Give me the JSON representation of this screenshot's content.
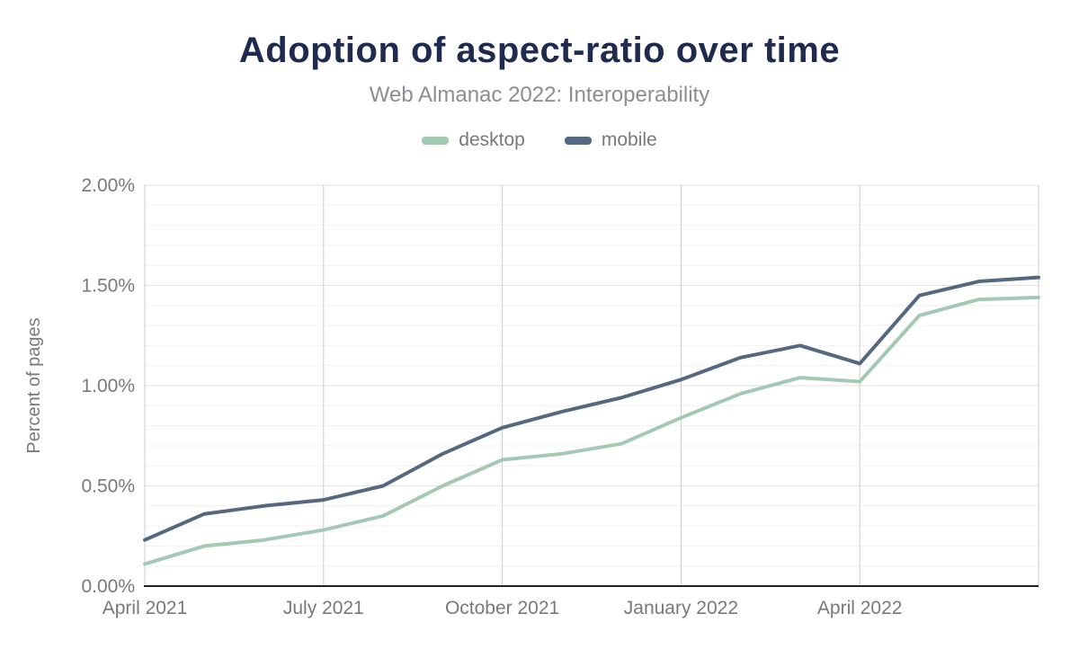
{
  "header": {
    "title": "Adoption of aspect-ratio over time",
    "subtitle": "Web Almanac 2022: Interoperability",
    "title_color": "#1f2b4e"
  },
  "legend": {
    "items": [
      {
        "label": "desktop",
        "color": "#a3c9b3"
      },
      {
        "label": "mobile",
        "color": "#54687f"
      }
    ]
  },
  "chart_data": {
    "type": "line",
    "title": "Adoption of aspect-ratio over time",
    "subtitle": "Web Almanac 2022: Interoperability",
    "xlabel": "",
    "ylabel": "Percent of pages",
    "ylim": [
      0,
      2
    ],
    "y_tick_step": 0.5,
    "y_minor_step": 0.1,
    "grid": true,
    "legend_position": "top",
    "categories": [
      "April 2021",
      "May 2021",
      "June 2021",
      "July 2021",
      "August 2021",
      "September 2021",
      "October 2021",
      "November 2021",
      "December 2021",
      "January 2022",
      "February 2022",
      "March 2022",
      "April 2022",
      "May 2022",
      "June 2022",
      "July 2022"
    ],
    "x_tick_indices": [
      0,
      3,
      6,
      9,
      12
    ],
    "x_tick_labels": [
      "April 2021",
      "July 2021",
      "October 2021",
      "January 2022",
      "April 2022"
    ],
    "x_gridline_indices": [
      0,
      3,
      6,
      9,
      12,
      15
    ],
    "y_ticks": [
      {
        "value": 0,
        "label": "0.00%"
      },
      {
        "value": 0.5,
        "label": "0.50%"
      },
      {
        "value": 1,
        "label": "1.00%"
      },
      {
        "value": 1.5,
        "label": "1.50%"
      },
      {
        "value": 2,
        "label": "2.00%"
      }
    ],
    "series": [
      {
        "name": "desktop",
        "color": "#a3c9b3",
        "values": [
          0.11,
          0.2,
          0.23,
          0.28,
          0.35,
          0.5,
          0.63,
          0.66,
          0.71,
          0.84,
          0.96,
          1.04,
          1.02,
          1.35,
          1.43,
          1.44
        ]
      },
      {
        "name": "mobile",
        "color": "#54687f",
        "values": [
          0.23,
          0.36,
          0.4,
          0.43,
          0.5,
          0.66,
          0.79,
          0.87,
          0.94,
          1.03,
          1.14,
          1.2,
          1.11,
          1.45,
          1.52,
          1.54
        ]
      }
    ],
    "style": {
      "axis_line_color": "#212121",
      "major_gridline_color": "#e2e2e2",
      "minor_gridline_color": "#f2f2f2",
      "vertical_gridline_color": "#cbcbcb",
      "axis_text_color": "#77797d"
    }
  }
}
